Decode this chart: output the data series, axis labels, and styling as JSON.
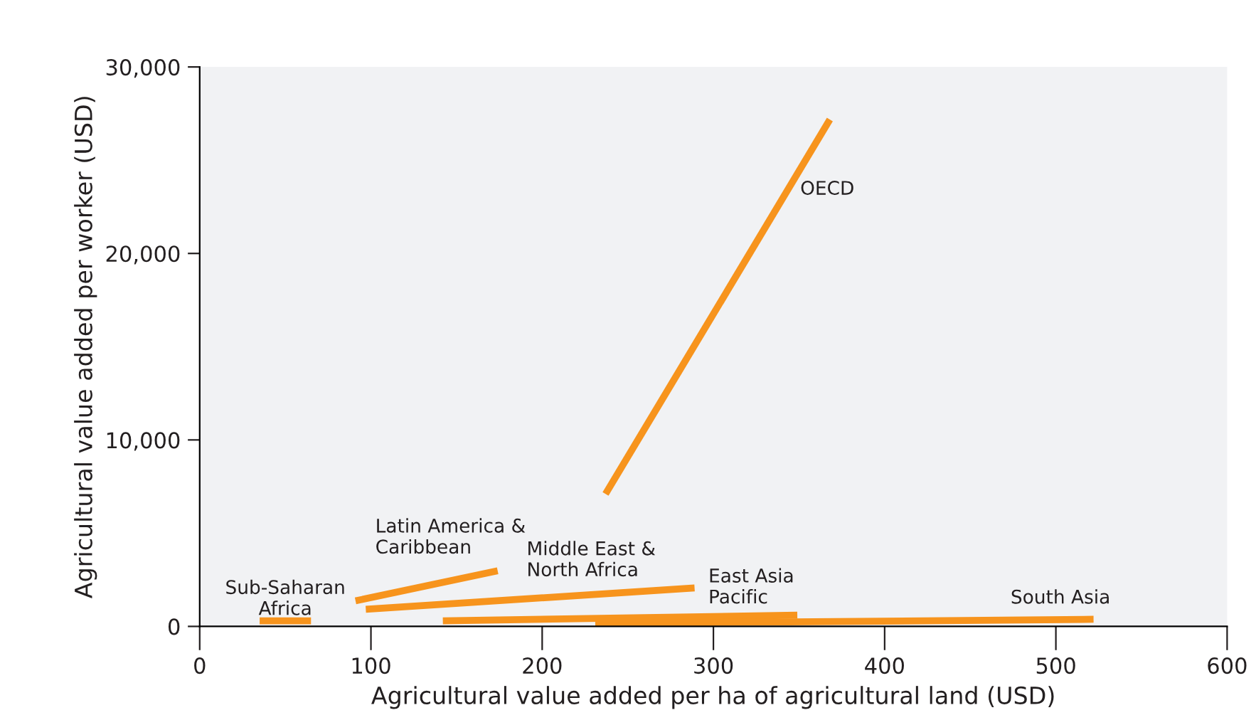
{
  "chart_data": {
    "type": "line",
    "xlabel": "Agricultural value added per ha of agricultural land (USD)",
    "ylabel": "Agricultural value added per worker (USD)",
    "xlim": [
      0,
      600
    ],
    "ylim": [
      0,
      30000
    ],
    "xticks": [
      0,
      100,
      200,
      300,
      400,
      500,
      600
    ],
    "yticks": [
      0,
      {
        "value": 10000,
        "label": "10,000"
      },
      {
        "value": 20000,
        "label": "20,000"
      },
      {
        "value": 30000,
        "label": "30,000"
      }
    ],
    "grid": false,
    "legend": false,
    "marker": "none",
    "line_style": "solid",
    "series": [
      {
        "name": "Sub-Saharan\nAfrica",
        "color": "#f7941d",
        "x": [
          35,
          65
        ],
        "values": [
          300,
          300
        ]
      },
      {
        "name": "Latin America &\nCaribbean",
        "color": "#f7941d",
        "x": [
          91,
          174
        ],
        "values": [
          1370,
          2980
        ]
      },
      {
        "name": "Middle East &\nNorth Africa",
        "color": "#f7941d",
        "x": [
          97,
          289
        ],
        "values": [
          920,
          2060
        ]
      },
      {
        "name": "East Asia\nPacific",
        "color": "#f7941d",
        "x": [
          142,
          349
        ],
        "values": [
          300,
          600
        ]
      },
      {
        "name": "South Asia",
        "color": "#f7941d",
        "x": [
          231,
          522
        ],
        "values": [
          150,
          380
        ]
      },
      {
        "name": "OECD",
        "color": "#f7941d",
        "x": [
          237,
          368
        ],
        "values": [
          7100,
          27180
        ]
      }
    ]
  }
}
